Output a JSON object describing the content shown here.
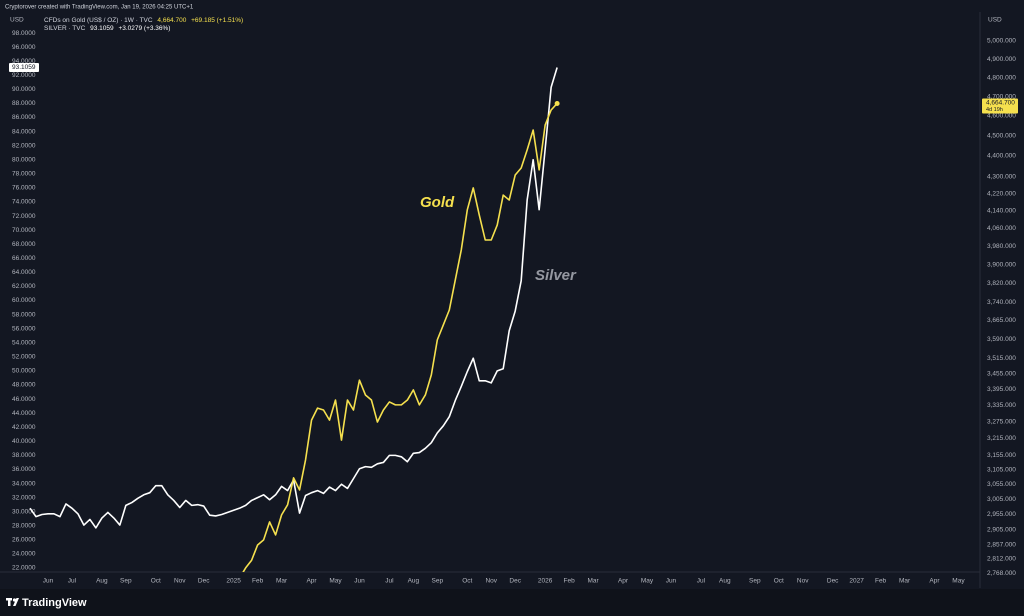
{
  "header": {
    "credit": "Cryptorover created with TradingView.com, Jan 19, 2026 04:25 UTC+1",
    "gold_name": "CFDs on Gold (US$ / OZ) · 1W · TVC",
    "gold_price": "4,664.700",
    "gold_change": "+69.185 (+1.51%)",
    "silver_name": "SILVER · TVC",
    "silver_price": "93.1059",
    "silver_change": "+3.0279 (+3.36%)"
  },
  "footer": {
    "logo": "TradingView"
  },
  "chart_data": {
    "type": "line",
    "ylabel": "USD",
    "y2label": "USD",
    "countdown": "4d 19h",
    "y2log": true,
    "grid": false,
    "categories": [
      null,
      null,
      null,
      "Jun",
      null,
      null,
      null,
      "Jul",
      null,
      null,
      null,
      null,
      "Aug",
      null,
      null,
      null,
      "Sep",
      null,
      null,
      null,
      null,
      "Oct",
      null,
      null,
      null,
      "Nov",
      null,
      null,
      null,
      "Dec",
      null,
      null,
      null,
      null,
      "2025",
      null,
      null,
      null,
      "Feb",
      null,
      null,
      null,
      "Mar",
      null,
      null,
      null,
      null,
      "Apr",
      null,
      null,
      null,
      "May",
      null,
      null,
      null,
      "Jun",
      null,
      null,
      null,
      null,
      "Jul",
      null,
      null,
      null,
      "Aug",
      null,
      null,
      null,
      "Sep",
      null,
      null,
      null,
      null,
      "Oct",
      null,
      null,
      null,
      "Nov",
      null,
      null,
      null,
      "Dec",
      null,
      null,
      null,
      null,
      "2026",
      null,
      null,
      null,
      "Feb",
      null,
      null,
      null,
      "Mar",
      null,
      null,
      null,
      null,
      "Apr",
      null,
      null,
      null,
      "May",
      null,
      null,
      null,
      "Jun",
      null,
      null,
      null,
      null,
      "Jul",
      null,
      null,
      null,
      "Aug",
      null,
      null,
      null,
      null,
      "Sep",
      null,
      null,
      null,
      "Oct",
      null,
      null,
      null,
      "Nov",
      null,
      null,
      null,
      null,
      "Dec",
      null,
      null,
      null,
      "2027",
      null,
      null,
      null,
      "Feb",
      null,
      null,
      null,
      "Mar",
      null,
      null,
      null,
      null,
      "Apr",
      null,
      null,
      null,
      "May"
    ],
    "series": [
      {
        "name": "Silver",
        "color": "#ffffff",
        "label_color": "#9598a1",
        "axis": "y",
        "values": [
          30.5,
          29.3,
          29.6,
          29.7,
          29.7,
          29.3,
          31.1,
          30.5,
          29.7,
          28.1,
          28.9,
          27.7,
          29.1,
          29.9,
          29.1,
          28.1,
          30.9,
          31.3,
          31.9,
          32.4,
          32.7,
          33.7,
          33.7,
          32.4,
          31.6,
          30.6,
          31.6,
          30.9,
          31.0,
          30.8,
          29.5,
          29.4,
          29.6,
          29.9,
          30.2,
          30.5,
          30.9,
          31.6,
          32.0,
          32.4,
          31.7,
          32.4,
          33.6,
          33.0,
          34.5,
          29.8,
          32.3,
          32.7,
          33.0,
          32.6,
          33.5,
          33.0,
          33.9,
          33.3,
          34.7,
          36.1,
          36.4,
          36.3,
          36.8,
          37.0,
          38.0,
          38.0,
          37.8,
          37.1,
          38.3,
          38.4,
          39.0,
          39.8,
          41.2,
          42.2,
          43.5,
          45.8,
          47.8,
          49.9,
          51.8,
          48.6,
          48.6,
          48.3,
          50.0,
          50.3,
          55.7,
          58.5,
          62.8,
          74.3,
          80.0,
          72.9,
          81.5,
          90.3,
          93.1059,
          null,
          null,
          null,
          null,
          null,
          null,
          null,
          null,
          null,
          null,
          null,
          null,
          null,
          null,
          null,
          null,
          null,
          null,
          null,
          null,
          null,
          null,
          null,
          null,
          null,
          null,
          null,
          null,
          null,
          null,
          null,
          null,
          null,
          null,
          null,
          null,
          null,
          null,
          null,
          null,
          null,
          null,
          null,
          null,
          null,
          null,
          null,
          null,
          null,
          null,
          null,
          null,
          null,
          null,
          null,
          null,
          null,
          null,
          null,
          null,
          null,
          null,
          null,
          null,
          null,
          null,
          null
        ]
      },
      {
        "name": "Gold",
        "color": "#f5e04e",
        "label_color": "#f5e04e",
        "axis": "y2",
        "values": [
          null,
          null,
          null,
          null,
          null,
          null,
          null,
          null,
          null,
          null,
          null,
          null,
          null,
          null,
          null,
          null,
          null,
          null,
          null,
          null,
          null,
          null,
          null,
          null,
          null,
          null,
          null,
          null,
          null,
          null,
          null,
          null,
          null,
          null,
          null,
          2753,
          2784,
          2808,
          2856,
          2872,
          2930,
          2888,
          2953,
          2986,
          3077,
          3036,
          3139,
          3281,
          3325,
          3318,
          3281,
          3355,
          3209,
          3355,
          3318,
          3430,
          3374,
          3355,
          3274,
          3318,
          3348,
          3337,
          3337,
          3355,
          3393,
          3337,
          3374,
          3450,
          3587,
          3647,
          3708,
          3834,
          3964,
          4144,
          4247,
          4121,
          4008,
          4008,
          4075,
          4213,
          4190,
          4308,
          4342,
          4430,
          4529,
          4333,
          4554,
          4631,
          4664.7,
          null,
          null,
          null,
          null,
          null,
          null,
          null,
          null,
          null,
          null,
          null,
          null,
          null,
          null,
          null,
          null,
          null,
          null,
          null,
          null,
          null,
          null,
          null,
          null,
          null,
          null,
          null,
          null,
          null,
          null,
          null,
          null,
          null,
          null,
          null,
          null,
          null,
          null,
          null,
          null,
          null,
          null,
          null,
          null,
          null,
          null,
          null,
          null,
          null,
          null,
          null,
          null,
          null,
          null,
          null,
          null,
          null,
          null,
          null,
          null,
          null,
          null,
          null,
          null,
          null,
          null,
          null
        ]
      }
    ],
    "ylim": [
      20.58,
      99
    ],
    "yticks": [
      {
        "value": 22,
        "label": "22.0000"
      },
      {
        "value": 24,
        "label": "24.0000"
      },
      {
        "value": 26,
        "label": "26.0000"
      },
      {
        "value": 28,
        "label": "28.0000"
      },
      {
        "value": 30,
        "label": "30.0000"
      },
      {
        "value": 32,
        "label": "32.0000"
      },
      {
        "value": 34,
        "label": "34.0000"
      },
      {
        "value": 36,
        "label": "36.0000"
      },
      {
        "value": 38,
        "label": "38.0000"
      },
      {
        "value": 40,
        "label": "40.0000"
      },
      {
        "value": 42,
        "label": "42.0000"
      },
      {
        "value": 44,
        "label": "44.0000"
      },
      {
        "value": 46,
        "label": "46.0000"
      },
      {
        "value": 48,
        "label": "48.0000"
      },
      {
        "value": 50,
        "label": "50.0000"
      },
      {
        "value": 52,
        "label": "52.0000"
      },
      {
        "value": 54,
        "label": "54.0000"
      },
      {
        "value": 56,
        "label": "56.0000"
      },
      {
        "value": 58,
        "label": "58.0000"
      },
      {
        "value": 60,
        "label": "60.0000"
      },
      {
        "value": 62,
        "label": "62.0000"
      },
      {
        "value": 64,
        "label": "64.0000"
      },
      {
        "value": 66,
        "label": "66.0000"
      },
      {
        "value": 68,
        "label": "68.0000"
      },
      {
        "value": 70,
        "label": "70.0000"
      },
      {
        "value": 72,
        "label": "72.0000"
      },
      {
        "value": 74,
        "label": "74.0000"
      },
      {
        "value": 76,
        "label": "76.0000"
      },
      {
        "value": 78,
        "label": "78.0000"
      },
      {
        "value": 80,
        "label": "80.0000"
      },
      {
        "value": 82,
        "label": "82.0000"
      },
      {
        "value": 84,
        "label": "84.0000"
      },
      {
        "value": 86,
        "label": "86.0000"
      },
      {
        "value": 88,
        "label": "88.0000"
      },
      {
        "value": 90,
        "label": "90.0000"
      },
      {
        "value": 92,
        "label": "92.0000"
      },
      {
        "value": 94,
        "label": "94.0000"
      },
      {
        "value": 96,
        "label": "96.0000"
      },
      {
        "value": 98,
        "label": "98.0000"
      }
    ],
    "y2lim": [
      2753,
      5084
    ],
    "y2ticks": [
      {
        "value": 2768,
        "label": "2,768.000"
      },
      {
        "value": 2812,
        "label": "2,812.000"
      },
      {
        "value": 2857,
        "label": "2,857.000"
      },
      {
        "value": 2905,
        "label": "2,905.000"
      },
      {
        "value": 2955,
        "label": "2,955.000"
      },
      {
        "value": 3005,
        "label": "3,005.000"
      },
      {
        "value": 3055,
        "label": "3,055.000"
      },
      {
        "value": 3105,
        "label": "3,105.000"
      },
      {
        "value": 3155,
        "label": "3,155.000"
      },
      {
        "value": 3215,
        "label": "3,215.000"
      },
      {
        "value": 3275,
        "label": "3,275.000"
      },
      {
        "value": 3335,
        "label": "3,335.000"
      },
      {
        "value": 3395,
        "label": "3,395.000"
      },
      {
        "value": 3455,
        "label": "3,455.000"
      },
      {
        "value": 3515,
        "label": "3,515.000"
      },
      {
        "value": 3590,
        "label": "3,590.000"
      },
      {
        "value": 3665,
        "label": "3,665.000"
      },
      {
        "value": 3740,
        "label": "3,740.000"
      },
      {
        "value": 3820,
        "label": "3,820.000"
      },
      {
        "value": 3900,
        "label": "3,900.000"
      },
      {
        "value": 3980,
        "label": "3,980.000"
      },
      {
        "value": 4060,
        "label": "4,060.000"
      },
      {
        "value": 4140,
        "label": "4,140.000"
      },
      {
        "value": 4220,
        "label": "4,220.000"
      },
      {
        "value": 4300,
        "label": "4,300.000"
      },
      {
        "value": 4400,
        "label": "4,400.000"
      },
      {
        "value": 4500,
        "label": "4,500.000"
      },
      {
        "value": 4600,
        "label": "4,600.000"
      },
      {
        "value": 4700,
        "label": "4,700.000"
      },
      {
        "value": 4800,
        "label": "4,800.000"
      },
      {
        "value": 4900,
        "label": "4,900.000"
      },
      {
        "value": 5000,
        "label": "5,000.000"
      }
    ]
  }
}
